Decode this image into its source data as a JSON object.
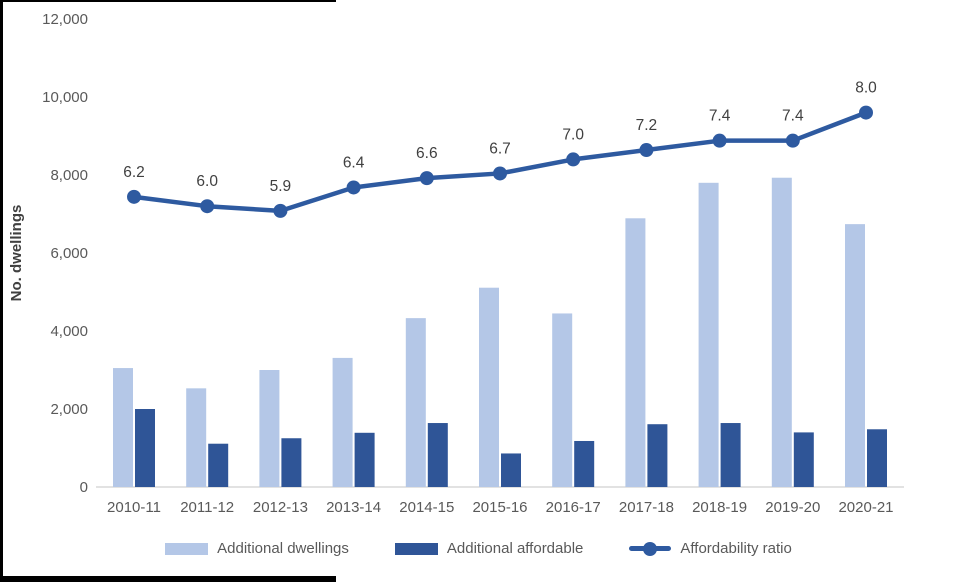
{
  "chart_data": {
    "type": "bar",
    "subtype": "grouped-bars-with-line",
    "categories": [
      "2010-11",
      "2011-12",
      "2012-13",
      "2013-14",
      "2014-15",
      "2015-16",
      "2016-17",
      "2017-18",
      "2018-19",
      "2019-20",
      "2020-21"
    ],
    "series": [
      {
        "name": "Additional dwellings",
        "type": "bar",
        "color": "#b4c7e7",
        "values": [
          3050,
          2530,
          3000,
          3310,
          4330,
          5110,
          4450,
          6890,
          7800,
          7930,
          6740
        ]
      },
      {
        "name": "Additional affordable",
        "type": "bar",
        "color": "#2f5597",
        "values": [
          2000,
          1110,
          1250,
          1390,
          1640,
          860,
          1180,
          1610,
          1640,
          1400,
          1480
        ]
      },
      {
        "name": "Affordability ratio",
        "type": "line",
        "color": "#2e5aa0",
        "values": [
          6.2,
          6.0,
          5.9,
          6.4,
          6.6,
          6.7,
          7.0,
          7.2,
          7.4,
          7.4,
          8.0
        ],
        "labels": [
          "6.2",
          "6.0",
          "5.9",
          "6.4",
          "6.6",
          "6.7",
          "7.0",
          "7.2",
          "7.4",
          "7.4",
          "8.0"
        ],
        "axis_scale": 1200
      }
    ],
    "title": "",
    "xlabel": "",
    "ylabel": "No. dwellings",
    "ylim": [
      0,
      12000
    ],
    "ytick_step": 2000,
    "yticks": [
      "0",
      "2,000",
      "4,000",
      "6,000",
      "8,000",
      "10,000",
      "12,000"
    ],
    "grid": false,
    "legend_position": "bottom",
    "colors": {
      "background": "#ffffff",
      "axis_line": "#d9d9d9",
      "tick_label": "#595959",
      "axis_title": "#404040",
      "data_label": "#404040",
      "legend_label": "#595959",
      "screenshot_border": "#000000"
    }
  }
}
